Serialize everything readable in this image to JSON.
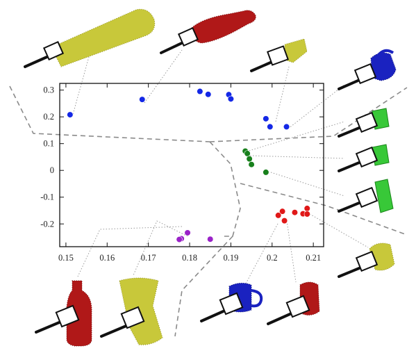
{
  "chart_data": {
    "type": "scatter",
    "title": "",
    "xlabel": "",
    "ylabel": "",
    "xlim": [
      0.1485,
      0.2125
    ],
    "ylim": [
      -0.285,
      0.325
    ],
    "xticks": [
      0.15,
      0.16,
      0.17,
      0.18,
      0.19,
      0.2,
      0.21
    ],
    "yticks": [
      0.3,
      0.2,
      0.1,
      0,
      -0.1,
      -0.2
    ],
    "xtick_labels": [
      "0.15",
      "0.16",
      "0.17",
      "0.18",
      "0.19",
      "0.2",
      "0.21"
    ],
    "ytick_labels": [
      "0.3",
      "0.2",
      "0.1",
      "0",
      "-0.1",
      "-0.2"
    ],
    "grid": false,
    "legend": "none",
    "series": [
      {
        "color": "#1428e6",
        "points": [
          [
            0.151,
            0.208
          ],
          [
            0.1685,
            0.265
          ],
          [
            0.1825,
            0.295
          ],
          [
            0.1845,
            0.284
          ],
          [
            0.1895,
            0.283
          ],
          [
            0.19,
            0.267
          ],
          [
            0.1985,
            0.193
          ],
          [
            0.1995,
            0.163
          ],
          [
            0.2035,
            0.163
          ]
        ]
      },
      {
        "color": "#18801c",
        "points": [
          [
            0.1935,
            0.072
          ],
          [
            0.194,
            0.063
          ],
          [
            0.1945,
            0.043
          ],
          [
            0.195,
            0.022
          ],
          [
            0.1985,
            -0.007
          ]
        ]
      },
      {
        "color": "#e01818",
        "points": [
          [
            0.2025,
            -0.153
          ],
          [
            0.2015,
            -0.168
          ],
          [
            0.203,
            -0.188
          ],
          [
            0.2055,
            -0.157
          ],
          [
            0.2075,
            -0.162
          ],
          [
            0.2085,
            -0.142
          ],
          [
            0.2085,
            -0.163
          ]
        ]
      },
      {
        "color": "#9a22c8",
        "points": [
          [
            0.1795,
            -0.233
          ],
          [
            0.178,
            -0.255
          ],
          [
            0.1775,
            -0.258
          ],
          [
            0.185,
            -0.257
          ]
        ]
      }
    ]
  },
  "thumbnails": [
    {
      "object": "yellow-tube",
      "color": "#c8c83a"
    },
    {
      "object": "red-bottle",
      "color": "#b01818"
    },
    {
      "object": "yellow-cup",
      "color": "#c8c83a"
    },
    {
      "object": "blue-mug",
      "color": "#1a22c0"
    },
    {
      "object": "green-box",
      "color": "#38c838"
    },
    {
      "object": "red-bottle",
      "color": "#b01818"
    },
    {
      "object": "yellow-cup",
      "color": "#c8c83a"
    },
    {
      "object": "blue-mug",
      "color": "#1a22c0"
    },
    {
      "object": "red-can",
      "color": "#b01818"
    }
  ]
}
